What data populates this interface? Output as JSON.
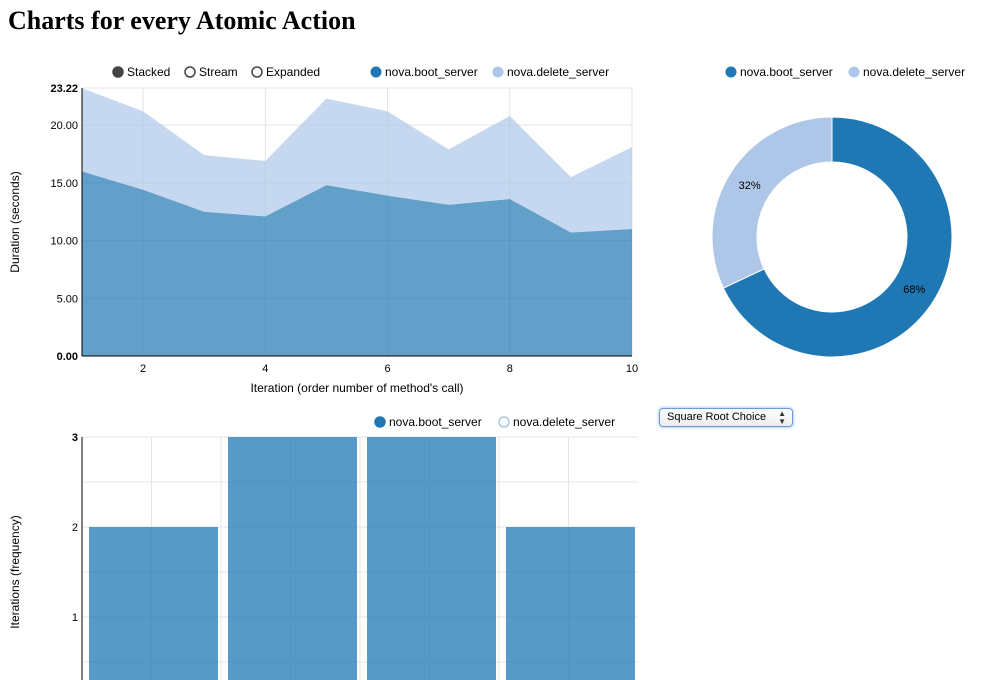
{
  "page": {
    "title": "Charts for every Atomic Action"
  },
  "controls": {
    "mode_options": [
      "Stacked",
      "Stream",
      "Expanded"
    ],
    "selected_mode": "Stacked"
  },
  "histogram_control": {
    "selected": "Square Root Choice"
  },
  "colors": {
    "boot": "#1f77b4",
    "delete": "#aec7e8",
    "mode_filled": "#444444"
  },
  "chart_data": [
    {
      "type": "area",
      "stacked": true,
      "legend": [
        "nova.boot_server",
        "nova.delete_server"
      ],
      "legend_position": "top-right",
      "xlabel": "Iteration (order number of method's call)",
      "ylabel": "Duration (seconds)",
      "x": [
        1,
        2,
        3,
        4,
        5,
        6,
        7,
        8,
        9,
        10
      ],
      "xlim": [
        1,
        10
      ],
      "ylim": [
        0,
        23.22
      ],
      "xticks": [
        "2",
        "4",
        "6",
        "8",
        "10"
      ],
      "yticks": [
        "0.00",
        "5.00",
        "10.00",
        "15.00",
        "20.00",
        "23.22"
      ],
      "series": [
        {
          "name": "nova.boot_server",
          "values": [
            16.0,
            14.4,
            12.5,
            12.1,
            14.8,
            13.9,
            13.1,
            13.6,
            10.7,
            11.0
          ]
        },
        {
          "name": "nova.delete_server",
          "values": [
            7.2,
            6.8,
            4.9,
            4.8,
            7.5,
            7.3,
            4.8,
            7.2,
            4.8,
            7.1
          ]
        }
      ],
      "grid": true
    },
    {
      "type": "pie",
      "donut": true,
      "legend": [
        "nova.boot_server",
        "nova.delete_server"
      ],
      "legend_position": "top",
      "slices": [
        {
          "name": "nova.boot_server",
          "value": 68,
          "label": "68%"
        },
        {
          "name": "nova.delete_server",
          "value": 32,
          "label": "32%"
        }
      ]
    },
    {
      "type": "bar",
      "histogram": true,
      "legend": [
        "nova.boot_server",
        "nova.delete_server"
      ],
      "legend_position": "top-right",
      "ylabel": "Iterations (frequency)",
      "values": [
        2,
        3,
        3,
        2
      ],
      "ylim": [
        0,
        3
      ],
      "yticks": [
        "1",
        "2",
        "3"
      ],
      "grid": true
    }
  ]
}
